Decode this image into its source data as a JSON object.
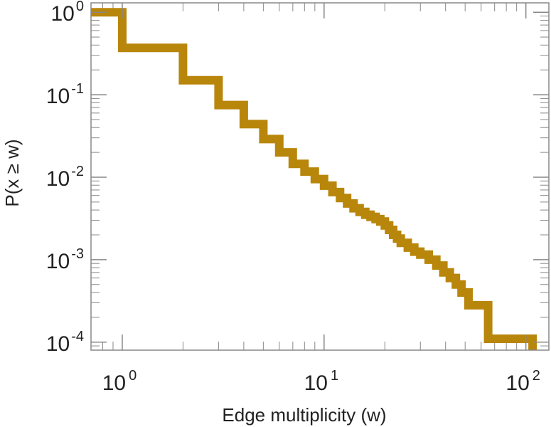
{
  "chart_data": {
    "type": "line",
    "title": "",
    "xlabel": "Edge multiplicity (w)",
    "ylabel": "P(x ≥ w)",
    "x_scale": "log",
    "y_scale": "log",
    "xlim": [
      0.7,
      130
    ],
    "ylim": [
      8e-05,
      1.3
    ],
    "grid": false,
    "legend": "none",
    "colors": {
      "series": "#b8860b",
      "axis": "#888888",
      "text": "#222222"
    },
    "x_ticks": [
      {
        "base": "10",
        "exp": "0"
      },
      {
        "base": "10",
        "exp": "1"
      },
      {
        "base": "10",
        "exp": "2"
      }
    ],
    "y_ticks": [
      {
        "base": "10",
        "exp": "0"
      },
      {
        "base": "10",
        "exp": "-1"
      },
      {
        "base": "10",
        "exp": "-2"
      },
      {
        "base": "10",
        "exp": "-3"
      },
      {
        "base": "10",
        "exp": "-4"
      }
    ],
    "series": [
      {
        "step": "post",
        "x": [
          0.7,
          1,
          2,
          3,
          4,
          5,
          6,
          7,
          8,
          9,
          10,
          11,
          12,
          13,
          14,
          15,
          16,
          17,
          18,
          19,
          20,
          21,
          22,
          23,
          24,
          26,
          28,
          30,
          33,
          36,
          39,
          42,
          45,
          48,
          52,
          65,
          108
        ],
        "y": [
          1.0,
          0.37,
          0.15,
          0.075,
          0.044,
          0.029,
          0.02,
          0.0145,
          0.0117,
          0.0095,
          0.0079,
          0.0066,
          0.0056,
          0.0048,
          0.0042,
          0.0038,
          0.0035,
          0.0033,
          0.0031,
          0.0029,
          0.0026,
          0.0023,
          0.002,
          0.0018,
          0.0016,
          0.0014,
          0.00125,
          0.00115,
          0.001,
          0.00085,
          0.0007,
          0.0006,
          0.0005,
          0.0004,
          0.00028,
          0.00011,
          0.00011
        ]
      }
    ]
  }
}
